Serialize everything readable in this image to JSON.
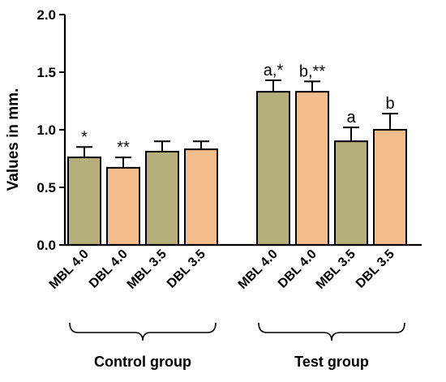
{
  "chart_data": {
    "type": "bar",
    "ylabel": "Values in mm.",
    "ylim": [
      0,
      2.0
    ],
    "yticks": [
      "0.0",
      "0.5",
      "1.0",
      "1.5",
      "2.0"
    ],
    "grid": false,
    "legend": "none",
    "groups": [
      {
        "label": "Control group",
        "bars": [
          {
            "category": "MBL 4.0",
            "value": 0.76,
            "error": 0.09,
            "annotation": "*",
            "color": "#b5b07a"
          },
          {
            "category": "DBL 4.0",
            "value": 0.67,
            "error": 0.09,
            "annotation": "**",
            "color": "#f5bd8c"
          },
          {
            "category": "MBL 3.5",
            "value": 0.81,
            "error": 0.09,
            "annotation": "",
            "color": "#b5b07a"
          },
          {
            "category": "DBL 3.5",
            "value": 0.83,
            "error": 0.07,
            "annotation": "",
            "color": "#f5bd8c"
          }
        ]
      },
      {
        "label": "Test group",
        "bars": [
          {
            "category": "MBL 4.0",
            "value": 1.33,
            "error": 0.1,
            "annotation": "a,*",
            "color": "#b5b07a"
          },
          {
            "category": "DBL 4.0",
            "value": 1.33,
            "error": 0.09,
            "annotation": "b,**",
            "color": "#f5bd8c"
          },
          {
            "category": "MBL 3.5",
            "value": 0.9,
            "error": 0.12,
            "annotation": "a",
            "color": "#b5b07a"
          },
          {
            "category": "DBL 3.5",
            "value": 1.0,
            "error": 0.14,
            "annotation": "b",
            "color": "#f5bd8c"
          }
        ]
      }
    ]
  }
}
